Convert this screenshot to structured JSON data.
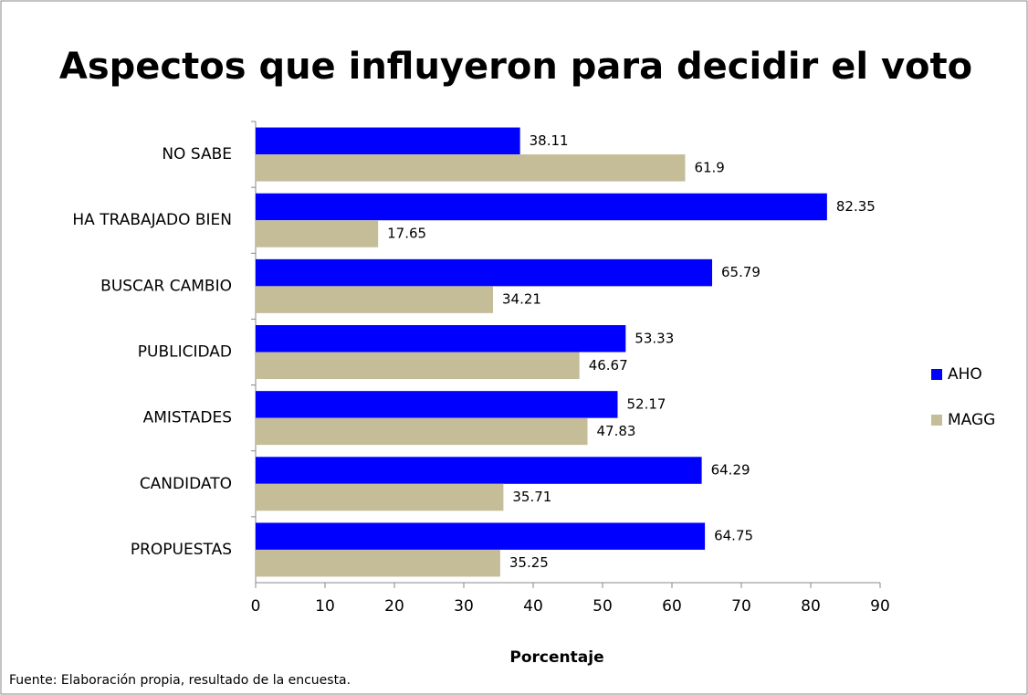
{
  "chart_data": {
    "type": "bar",
    "horizontal": true,
    "title": "Aspectos que influyeron para decidir el voto",
    "x_label": "Porcentaje",
    "source": "Fuente: Elaboración propia, resultado de la encuesta.",
    "categories": [
      "NO SABE",
      "HA TRABAJADO BIEN",
      "BUSCAR CAMBIO",
      "PUBLICIDAD",
      "AMISTADES",
      "CANDIDATO",
      "PROPUESTAS"
    ],
    "series": [
      {
        "name": "AHO",
        "color": "#0000ff",
        "values": [
          38.11,
          82.35,
          65.79,
          53.33,
          52.17,
          64.29,
          64.75
        ]
      },
      {
        "name": "MAGG",
        "color": "#c4bd97",
        "values": [
          61.9,
          17.65,
          34.21,
          46.67,
          47.83,
          35.71,
          35.25
        ]
      }
    ],
    "xlim": [
      0,
      90
    ],
    "xticks": [
      0,
      10,
      20,
      30,
      40,
      50,
      60,
      70,
      80,
      90
    ],
    "grid": false,
    "legend": "right"
  }
}
